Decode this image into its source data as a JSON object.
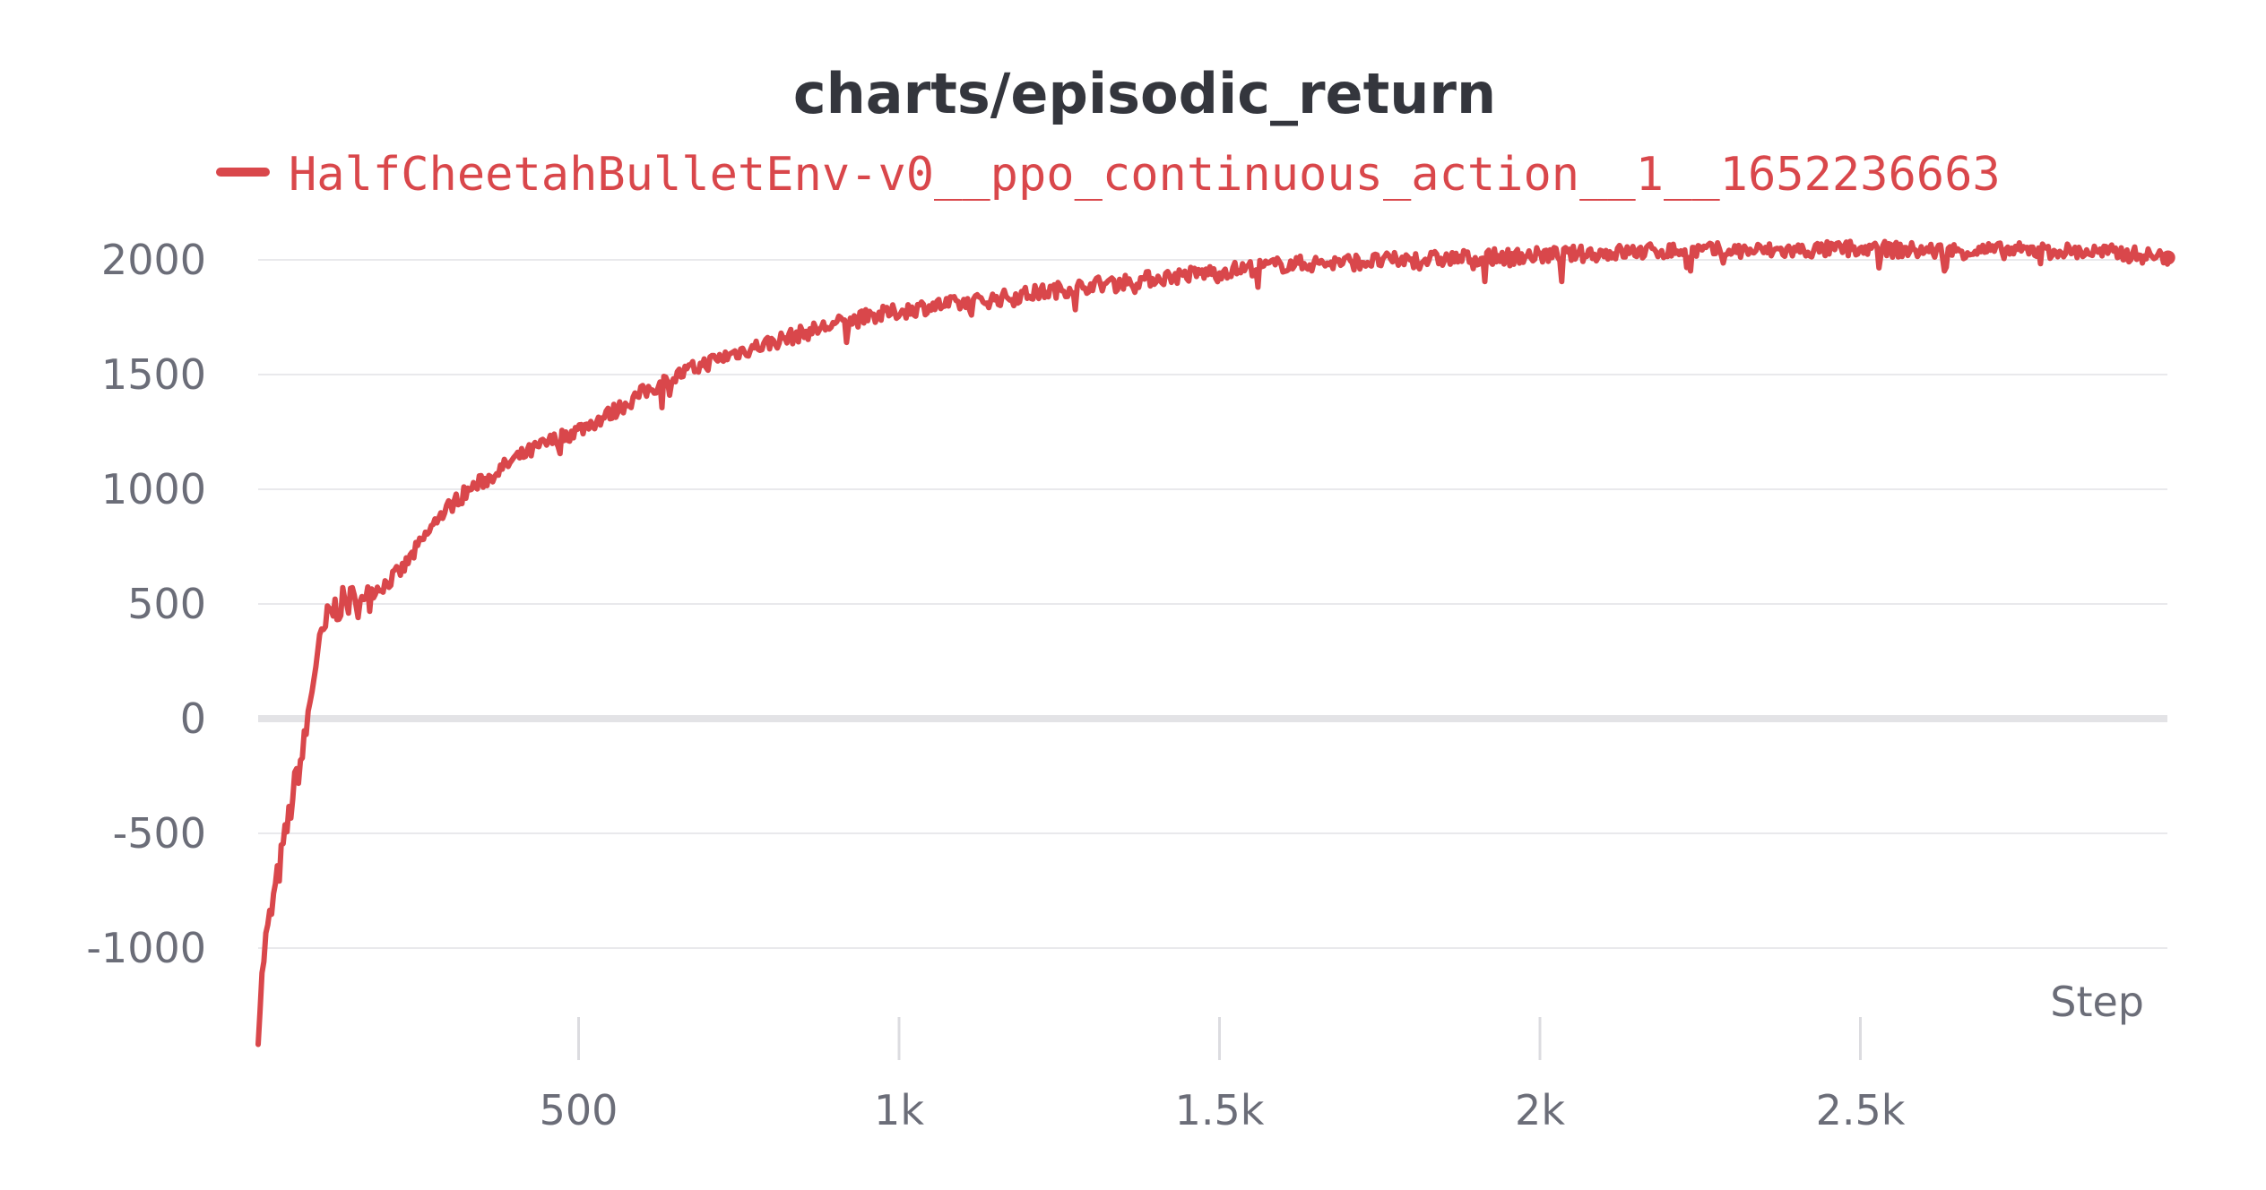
{
  "chart_data": {
    "type": "line",
    "title": "charts/episodic_return",
    "xlabel": "Step",
    "ylabel": "",
    "xlim": [
      0,
      2980
    ],
    "ylim": [
      -1400,
      2100
    ],
    "x_ticks": [
      500,
      1000,
      1500,
      2000,
      2500
    ],
    "x_tick_labels": [
      "500",
      "1k",
      "1.5k",
      "2k",
      "2.5k"
    ],
    "y_ticks": [
      -1000,
      -500,
      0,
      500,
      1000,
      1500,
      2000
    ],
    "y_tick_labels": [
      "-1000",
      "-500",
      "0",
      "500",
      "1000",
      "1500",
      "2000"
    ],
    "grid": true,
    "legend_position": "top",
    "colors": {
      "series": "#d9474b",
      "title": "#34363d",
      "ticks": "#6b6d78"
    },
    "series": [
      {
        "name": "HalfCheetahBulletEnv-v0__ppo_continuous_action__1__1652236663",
        "x": [
          0,
          10,
          20,
          30,
          40,
          50,
          60,
          70,
          80,
          90,
          100,
          110,
          120,
          130,
          140,
          160,
          180,
          200,
          225,
          250,
          275,
          300,
          330,
          360,
          400,
          450,
          500,
          550,
          600,
          650,
          700,
          750,
          800,
          850,
          900,
          950,
          1000,
          1050,
          1100,
          1150,
          1200,
          1250,
          1300,
          1400,
          1500,
          1600,
          1700,
          1800,
          1900,
          2000,
          2100,
          2200,
          2300,
          2400,
          2500,
          2600,
          2700,
          2800,
          2900,
          2980
        ],
        "y": [
          -1350,
          -1000,
          -850,
          -700,
          -550,
          -400,
          -250,
          -150,
          50,
          250,
          350,
          450,
          480,
          500,
          510,
          530,
          560,
          590,
          650,
          750,
          850,
          930,
          1000,
          1050,
          1130,
          1200,
          1260,
          1330,
          1420,
          1490,
          1550,
          1600,
          1640,
          1680,
          1720,
          1750,
          1775,
          1800,
          1810,
          1830,
          1850,
          1870,
          1890,
          1920,
          1950,
          1980,
          1990,
          2000,
          2010,
          2020,
          2030,
          2040,
          2040,
          2040,
          2050,
          2040,
          2040,
          2040,
          2030,
          2010
        ]
      }
    ]
  }
}
